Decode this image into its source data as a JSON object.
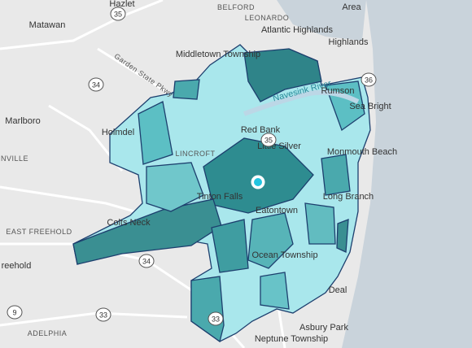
{
  "map": {
    "labels": [
      "Hazlet",
      "BELFORD",
      "LEONARDO",
      "Area",
      "Matawan",
      "Atlantic Highlands",
      "Highlands",
      "Middletown Township",
      "Garden State Pkwy",
      "Navesink River",
      "Rumson",
      "Sea Bright",
      "Holmdel",
      "Red Bank",
      "Marlboro",
      "LINCROFT",
      "Little Silver",
      "Monmouth Beach",
      "NVILLE",
      "Tinton Falls",
      "Long Branch",
      "Eatontown",
      "Colts Neck",
      "EAST FREEHOLD",
      "Ocean Township",
      "reehold",
      "Deal",
      "Asbury Park",
      "ADELPHIA",
      "Neptune Township"
    ],
    "shields": [
      "35",
      "36",
      "34",
      "35",
      "34",
      "9",
      "33",
      "33"
    ]
  }
}
